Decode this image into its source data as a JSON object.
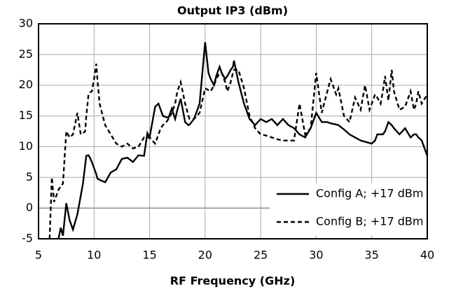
{
  "chart_data": {
    "type": "line",
    "title": "Output IP3 (dBm)",
    "x_label": "RF Frequency (GHz)",
    "xlim": [
      5,
      40
    ],
    "xticks": [
      5,
      10,
      15,
      20,
      25,
      30,
      35,
      40
    ],
    "ylim": [
      -5,
      30
    ],
    "yticks": [
      -5,
      0,
      5,
      10,
      15,
      20,
      25,
      30
    ],
    "grid": true,
    "legend": "lower right",
    "x": [
      6,
      6.2,
      6.4,
      6.8,
      7,
      7.2,
      7.5,
      7.8,
      8.1,
      8.5,
      8.8,
      9,
      9.2,
      9.3,
      9.5,
      9.6,
      9.8,
      10,
      10.2,
      10.3,
      10.5,
      11,
      11.5,
      12,
      12.5,
      13,
      13.5,
      14,
      14.5,
      14.8,
      15,
      15.5,
      15.8,
      16,
      16.2,
      16.5,
      16.7,
      17,
      17.3,
      17.5,
      17.8,
      18.2,
      18.5,
      18.6,
      19,
      19.5,
      20,
      20.3,
      20.5,
      20.8,
      21,
      21.3,
      21.5,
      21.8,
      22,
      22.3,
      22.5,
      22.6,
      23,
      23.5,
      24,
      24.5,
      25,
      25.5,
      26,
      26.5,
      27,
      27.5,
      28,
      28.5,
      29,
      29.5,
      30,
      30.5,
      31,
      31.3,
      31.8,
      32,
      32.5,
      33,
      33.5,
      34,
      34.4,
      34.8,
      35,
      35.3,
      35.5,
      35.8,
      36,
      36.2,
      36.5,
      36.8,
      37,
      37.5,
      38,
      38.5,
      38.8,
      39,
      39.2,
      39.5,
      40
    ],
    "series": [
      {
        "name": "Config A; +17 dBm",
        "color": "#000000",
        "dash": false,
        "values": [
          null,
          null,
          null,
          -5,
          -3.2,
          -4.5,
          0.8,
          -2,
          -3.5,
          -1,
          2,
          4,
          7,
          8.5,
          8.6,
          8.3,
          7.5,
          6.5,
          5.5,
          4.8,
          4.6,
          4.2,
          5.8,
          6.3,
          8,
          8.2,
          7.5,
          8.6,
          8.5,
          12.2,
          11.5,
          16.5,
          17,
          16,
          15,
          14.8,
          14.7,
          16.2,
          14.5,
          16,
          17.8,
          14,
          13.5,
          13.6,
          14.5,
          17,
          27,
          22,
          21,
          20,
          21.5,
          23,
          22,
          21,
          21.5,
          22.5,
          23,
          24,
          20.5,
          17,
          14.5,
          13.5,
          14.5,
          14,
          14.5,
          13.5,
          14.5,
          13.5,
          13,
          12,
          11.5,
          13,
          15.5,
          14,
          14,
          13.8,
          13.6,
          13.5,
          12.8,
          12,
          11.5,
          11,
          10.8,
          10.6,
          10.5,
          11,
          12,
          12,
          12,
          12.5,
          14,
          13.5,
          13,
          12,
          13,
          11.5,
          12,
          12,
          11.5,
          11,
          8.5
        ]
      },
      {
        "name": "Config B; +17 dBm",
        "color": "#000000",
        "dash": true,
        "values": [
          -5,
          5,
          1,
          3,
          3.5,
          4,
          12.5,
          11.5,
          12,
          15.5,
          12,
          12.2,
          12.5,
          15,
          18.5,
          18.8,
          19,
          21,
          23.5,
          21,
          17,
          13.5,
          12,
          10.5,
          10,
          10.5,
          9.7,
          10,
          11.5,
          11.5,
          11.5,
          10.5,
          12,
          13,
          13.5,
          14,
          14.5,
          15.5,
          17,
          19,
          20.5,
          17,
          15,
          14.5,
          14.5,
          15.5,
          19.5,
          19.2,
          19,
          20,
          21,
          22,
          22,
          20.5,
          19,
          20.5,
          22,
          22.5,
          22.5,
          19.5,
          15,
          13,
          12,
          11.8,
          11.5,
          11.2,
          11,
          11,
          11,
          17,
          12,
          13,
          22,
          15.5,
          19,
          21,
          18.5,
          19.5,
          15,
          14,
          18,
          16,
          20,
          16,
          17,
          18.5,
          18,
          17,
          19,
          21.5,
          17.5,
          22.5,
          19,
          16,
          16.5,
          19,
          16,
          17,
          19,
          17,
          18.5
        ]
      }
    ]
  }
}
